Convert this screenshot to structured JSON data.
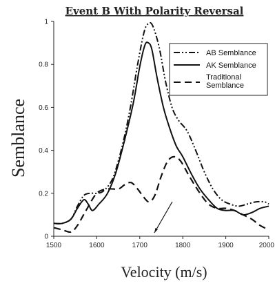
{
  "chart_data": {
    "type": "line",
    "title": "Event B With Polarity Reversal",
    "xlabel": "Velocity (m/s)",
    "ylabel": "Semblance",
    "xlim": [
      1500,
      2000
    ],
    "ylim": [
      0,
      1
    ],
    "x_ticks": [
      "1500",
      "1600",
      "1700",
      "1800",
      "1900",
      "2000"
    ],
    "y_ticks": [
      "0",
      "0.2",
      "0.4",
      "0.6",
      "0.8",
      "1"
    ],
    "grid": false,
    "legend_position": "top-right",
    "series": [
      {
        "name": "AB Semblance",
        "line_style": "dash-dot-dot",
        "color": "#111111",
        "points": [
          [
            1500,
            0.06
          ],
          [
            1520,
            0.06
          ],
          [
            1540,
            0.08
          ],
          [
            1555,
            0.14
          ],
          [
            1570,
            0.19
          ],
          [
            1585,
            0.2
          ],
          [
            1600,
            0.2
          ],
          [
            1615,
            0.21
          ],
          [
            1635,
            0.26
          ],
          [
            1650,
            0.35
          ],
          [
            1665,
            0.47
          ],
          [
            1680,
            0.62
          ],
          [
            1695,
            0.8
          ],
          [
            1710,
            0.95
          ],
          [
            1720,
            0.99
          ],
          [
            1730,
            0.98
          ],
          [
            1745,
            0.88
          ],
          [
            1760,
            0.72
          ],
          [
            1775,
            0.6
          ],
          [
            1790,
            0.54
          ],
          [
            1810,
            0.49
          ],
          [
            1830,
            0.4
          ],
          [
            1850,
            0.3
          ],
          [
            1870,
            0.22
          ],
          [
            1890,
            0.17
          ],
          [
            1910,
            0.15
          ],
          [
            1930,
            0.14
          ],
          [
            1950,
            0.15
          ],
          [
            1970,
            0.16
          ],
          [
            1990,
            0.16
          ],
          [
            2000,
            0.15
          ]
        ]
      },
      {
        "name": "AK Semblance",
        "line_style": "solid",
        "color": "#111111",
        "points": [
          [
            1500,
            0.06
          ],
          [
            1520,
            0.06
          ],
          [
            1540,
            0.08
          ],
          [
            1555,
            0.13
          ],
          [
            1570,
            0.17
          ],
          [
            1580,
            0.15
          ],
          [
            1590,
            0.12
          ],
          [
            1605,
            0.15
          ],
          [
            1625,
            0.2
          ],
          [
            1645,
            0.3
          ],
          [
            1665,
            0.45
          ],
          [
            1685,
            0.62
          ],
          [
            1700,
            0.79
          ],
          [
            1712,
            0.89
          ],
          [
            1720,
            0.9
          ],
          [
            1728,
            0.87
          ],
          [
            1740,
            0.74
          ],
          [
            1755,
            0.6
          ],
          [
            1770,
            0.5
          ],
          [
            1785,
            0.42
          ],
          [
            1800,
            0.37
          ],
          [
            1820,
            0.29
          ],
          [
            1840,
            0.22
          ],
          [
            1860,
            0.17
          ],
          [
            1880,
            0.13
          ],
          [
            1900,
            0.12
          ],
          [
            1920,
            0.12
          ],
          [
            1940,
            0.1
          ],
          [
            1960,
            0.11
          ],
          [
            1980,
            0.13
          ],
          [
            2000,
            0.14
          ]
        ]
      },
      {
        "name": "Traditional Semblance",
        "line_style": "dashed",
        "color": "#111111",
        "points": [
          [
            1500,
            0.04
          ],
          [
            1520,
            0.03
          ],
          [
            1540,
            0.02
          ],
          [
            1555,
            0.05
          ],
          [
            1575,
            0.12
          ],
          [
            1600,
            0.2
          ],
          [
            1625,
            0.22
          ],
          [
            1650,
            0.22
          ],
          [
            1665,
            0.24
          ],
          [
            1680,
            0.25
          ],
          [
            1695,
            0.22
          ],
          [
            1710,
            0.18
          ],
          [
            1722,
            0.16
          ],
          [
            1735,
            0.19
          ],
          [
            1750,
            0.28
          ],
          [
            1765,
            0.35
          ],
          [
            1780,
            0.37
          ],
          [
            1795,
            0.35
          ],
          [
            1815,
            0.28
          ],
          [
            1840,
            0.2
          ],
          [
            1860,
            0.15
          ],
          [
            1880,
            0.13
          ],
          [
            1900,
            0.13
          ],
          [
            1920,
            0.12
          ],
          [
            1940,
            0.1
          ],
          [
            1960,
            0.08
          ],
          [
            1980,
            0.05
          ],
          [
            2000,
            0.03
          ]
        ]
      }
    ]
  }
}
